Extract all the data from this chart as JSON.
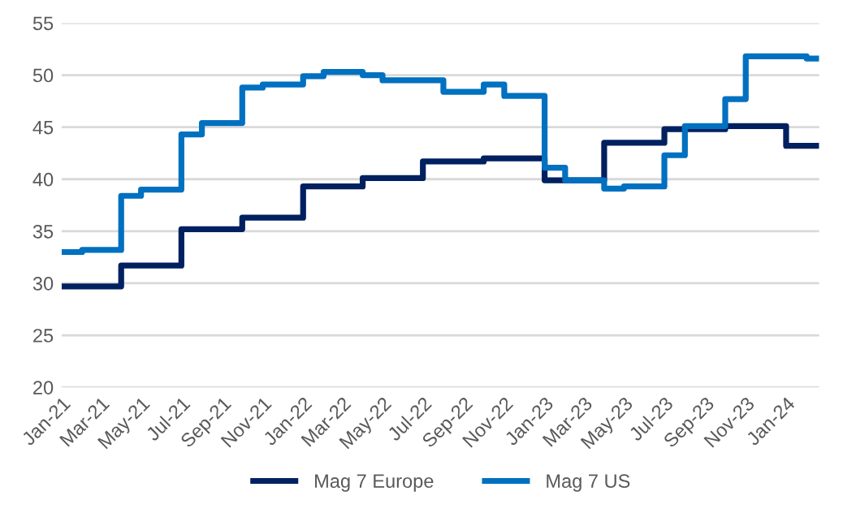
{
  "chart_data": {
    "type": "step",
    "ylim": [
      20,
      55
    ],
    "yticks": [
      20,
      25,
      30,
      35,
      40,
      45,
      50,
      55
    ],
    "xlim": [
      "2021-01",
      "2024-02-20"
    ],
    "xticks": [
      {
        "value": "2021-01",
        "label": "Jan-21"
      },
      {
        "value": "2021-03",
        "label": "Mar-21"
      },
      {
        "value": "2021-05",
        "label": "May-21"
      },
      {
        "value": "2021-07",
        "label": "Jul-21"
      },
      {
        "value": "2021-09",
        "label": "Sep-21"
      },
      {
        "value": "2021-11",
        "label": "Nov-21"
      },
      {
        "value": "2022-01",
        "label": "Jan-22"
      },
      {
        "value": "2022-03",
        "label": "Mar-22"
      },
      {
        "value": "2022-05",
        "label": "May-22"
      },
      {
        "value": "2022-07",
        "label": "Jul-22"
      },
      {
        "value": "2022-09",
        "label": "Sep-22"
      },
      {
        "value": "2022-11",
        "label": "Nov-22"
      },
      {
        "value": "2023-01",
        "label": "Jan-23"
      },
      {
        "value": "2023-03",
        "label": "Mar-23"
      },
      {
        "value": "2023-05",
        "label": "May-23"
      },
      {
        "value": "2023-07",
        "label": "Jul-23"
      },
      {
        "value": "2023-09",
        "label": "Sep-23"
      },
      {
        "value": "2023-11",
        "label": "Nov-23"
      },
      {
        "value": "2024-01",
        "label": "Jan-24"
      }
    ],
    "grid": "y",
    "legend": "bottom",
    "series": [
      {
        "name": "Mag 7 Europe",
        "color": "#002060",
        "x": [
          "2021-01",
          "2021-04",
          "2021-07",
          "2021-10",
          "2022-01",
          "2022-04",
          "2022-07",
          "2022-10",
          "2023-01",
          "2023-04",
          "2023-07",
          "2023-10",
          "2024-01",
          "2024-02-20"
        ],
        "values": [
          29.7,
          31.7,
          35.2,
          36.3,
          39.3,
          40.1,
          41.7,
          42.0,
          39.9,
          43.5,
          44.8,
          45.1,
          43.2,
          43.2
        ]
      },
      {
        "name": "Mag 7 US",
        "color": "#0070c0",
        "x": [
          "2021-01",
          "2021-02",
          "2021-04",
          "2021-05",
          "2021-07",
          "2021-08",
          "2021-10",
          "2021-11",
          "2022-01",
          "2022-02",
          "2022-04",
          "2022-05",
          "2022-08",
          "2022-10",
          "2022-11",
          "2023-01",
          "2023-02",
          "2023-04",
          "2023-05",
          "2023-07",
          "2023-08",
          "2023-10",
          "2023-11",
          "2024-02",
          "2024-02-20"
        ],
        "values": [
          33.0,
          33.2,
          38.4,
          39.0,
          44.3,
          45.4,
          48.8,
          49.1,
          49.9,
          50.3,
          50.0,
          49.5,
          48.4,
          49.1,
          48.0,
          41.1,
          39.9,
          39.1,
          39.3,
          42.3,
          45.1,
          47.7,
          51.8,
          51.6,
          51.6
        ]
      }
    ]
  }
}
